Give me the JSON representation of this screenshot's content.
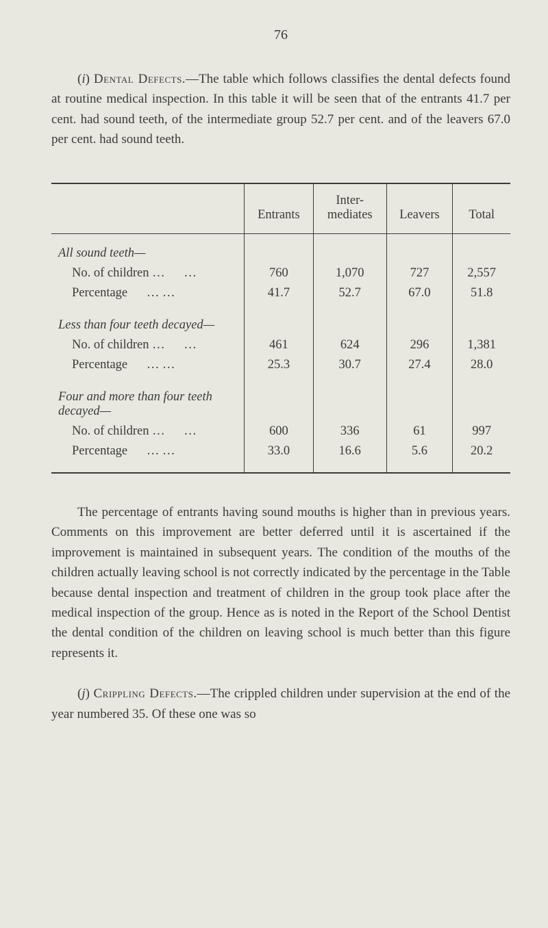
{
  "page_number": "76",
  "para1_prefix": "(",
  "para1_marker": "i",
  "para1_close": ") ",
  "para1_caps": "Dental Defects.",
  "para1_rest": "—The table which follows classifies the dental defects found at routine medical inspection. In this table it will be seen that of the entrants 41.7 per cent. had sound teeth, of the intermediate group 52.7 per cent. and of the leavers 67.0 per cent. had sound teeth.",
  "table": {
    "headers": [
      "",
      "Entrants",
      "Inter-\nmediates",
      "Leavers",
      "Total"
    ],
    "sections": [
      {
        "title": "All sound teeth—",
        "rows": [
          {
            "label": "No. of children …",
            "dots": "…",
            "vals": [
              "760",
              "1,070",
              "727",
              "2,557"
            ]
          },
          {
            "label": "Percentage",
            "dots": "…   …",
            "vals": [
              "41.7",
              "52.7",
              "67.0",
              "51.8"
            ]
          }
        ]
      },
      {
        "title": "Less than four teeth decayed—",
        "rows": [
          {
            "label": "No. of children …",
            "dots": "…",
            "vals": [
              "461",
              "624",
              "296",
              "1,381"
            ]
          },
          {
            "label": "Percentage",
            "dots": "…   …",
            "vals": [
              "25.3",
              "30.7",
              "27.4",
              "28.0"
            ]
          }
        ]
      },
      {
        "title": "Four and more than four teeth decayed—",
        "rows": [
          {
            "label": "No. of children …",
            "dots": "…",
            "vals": [
              "600",
              "336",
              "61",
              "997"
            ]
          },
          {
            "label": "Percentage",
            "dots": "…   …",
            "vals": [
              "33.0",
              "16.6",
              "5.6",
              "20.2"
            ]
          }
        ]
      }
    ]
  },
  "para2": "The percentage of entrants having sound mouths is higher than in previous years. Comments on this improvement are better deferred until it is ascertained if the improvement is maintained in subsequent years. The condition of the mouths of the children actually leaving school is not correctly indicated by the percentage in the Table because dental inspection and treatment of children in the group took place after the medical inspection of the group. Hence as is noted in the Report of the School Dentist the dental condition of the children on leaving school is much better than this figure represents it.",
  "para3_prefix": "(",
  "para3_marker": "j",
  "para3_close": ") ",
  "para3_caps": "Crippling Defects.",
  "para3_rest": "—The crippled children under super­vision at the end of the year numbered 35. Of these one was so"
}
